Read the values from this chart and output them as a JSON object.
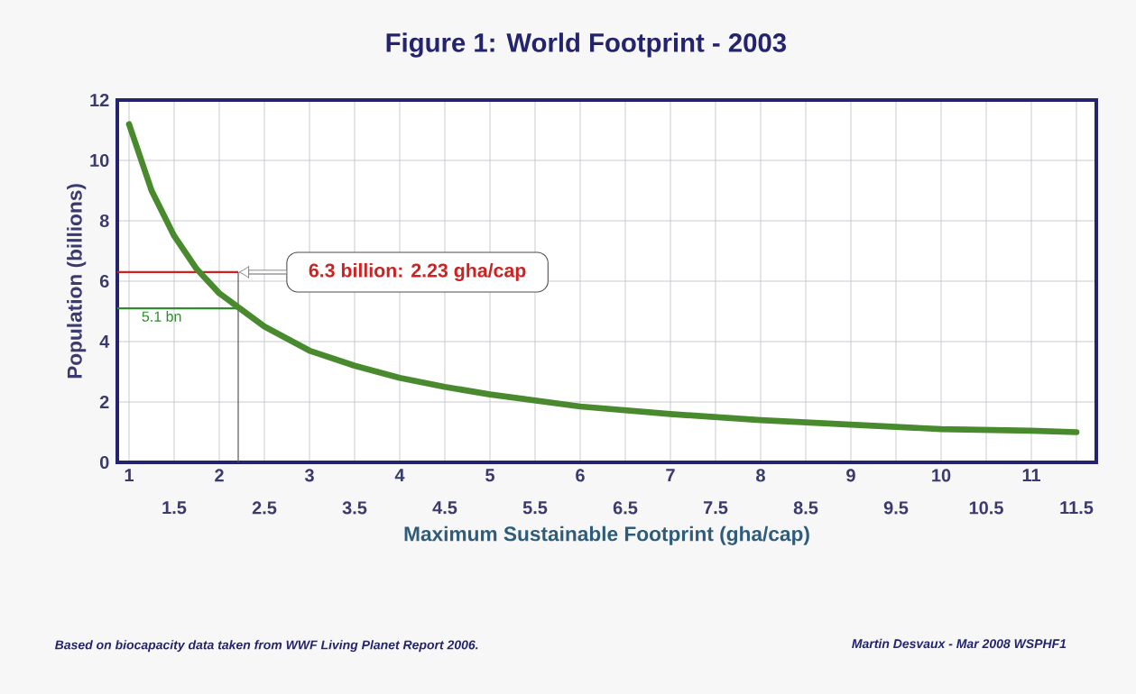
{
  "chart_data": {
    "type": "line",
    "title": "Figure 1:  World Footprint  -  2003",
    "xlabel": "Maximum Sustainable Footprint  (gha/cap)",
    "ylabel": "Population (billions)",
    "x": [
      1,
      1.25,
      1.5,
      1.75,
      2,
      2.5,
      3,
      3.5,
      4,
      4.5,
      5,
      6,
      7,
      8,
      9,
      10,
      11,
      11.5
    ],
    "series": [
      {
        "color": "#4a8a2e",
        "values": [
          11.2,
          9.0,
          7.5,
          6.4,
          5.6,
          4.5,
          3.7,
          3.2,
          2.8,
          2.5,
          2.25,
          1.85,
          1.6,
          1.4,
          1.25,
          1.1,
          1.05,
          1.0
        ]
      }
    ],
    "xlim": [
      0.87,
      11.72
    ],
    "ylim": [
      0,
      12
    ],
    "xticks": [
      1,
      2,
      3,
      4,
      5,
      6,
      7,
      8,
      9,
      10,
      11
    ],
    "x2lim": [
      0.87,
      11.72
    ],
    "x2ticks": [
      1.5,
      2.5,
      3.5,
      4.5,
      5.5,
      6.5,
      7.5,
      8.5,
      9.5,
      10.5,
      11.5
    ],
    "yticks": [
      0,
      2,
      4,
      6,
      8,
      10,
      12
    ],
    "grid": true,
    "marker": "none",
    "line_style": "solid",
    "ref_lines": [
      {
        "axis": "y",
        "value": 6.3,
        "label": "6.3 billion: 2.23 gha/cap",
        "color": "#cc2222"
      },
      {
        "axis": "y",
        "value": 5.1,
        "label": "5.1 bn",
        "color": "#2e8b2e"
      },
      {
        "axis": "x",
        "value": 2.21,
        "color": "#555555"
      }
    ],
    "annotations": [
      "Based on biocapacity data taken from WWF Living Planet Report 2006.",
      "Martin Desvaux - Mar 2008   WSPHF1"
    ]
  }
}
